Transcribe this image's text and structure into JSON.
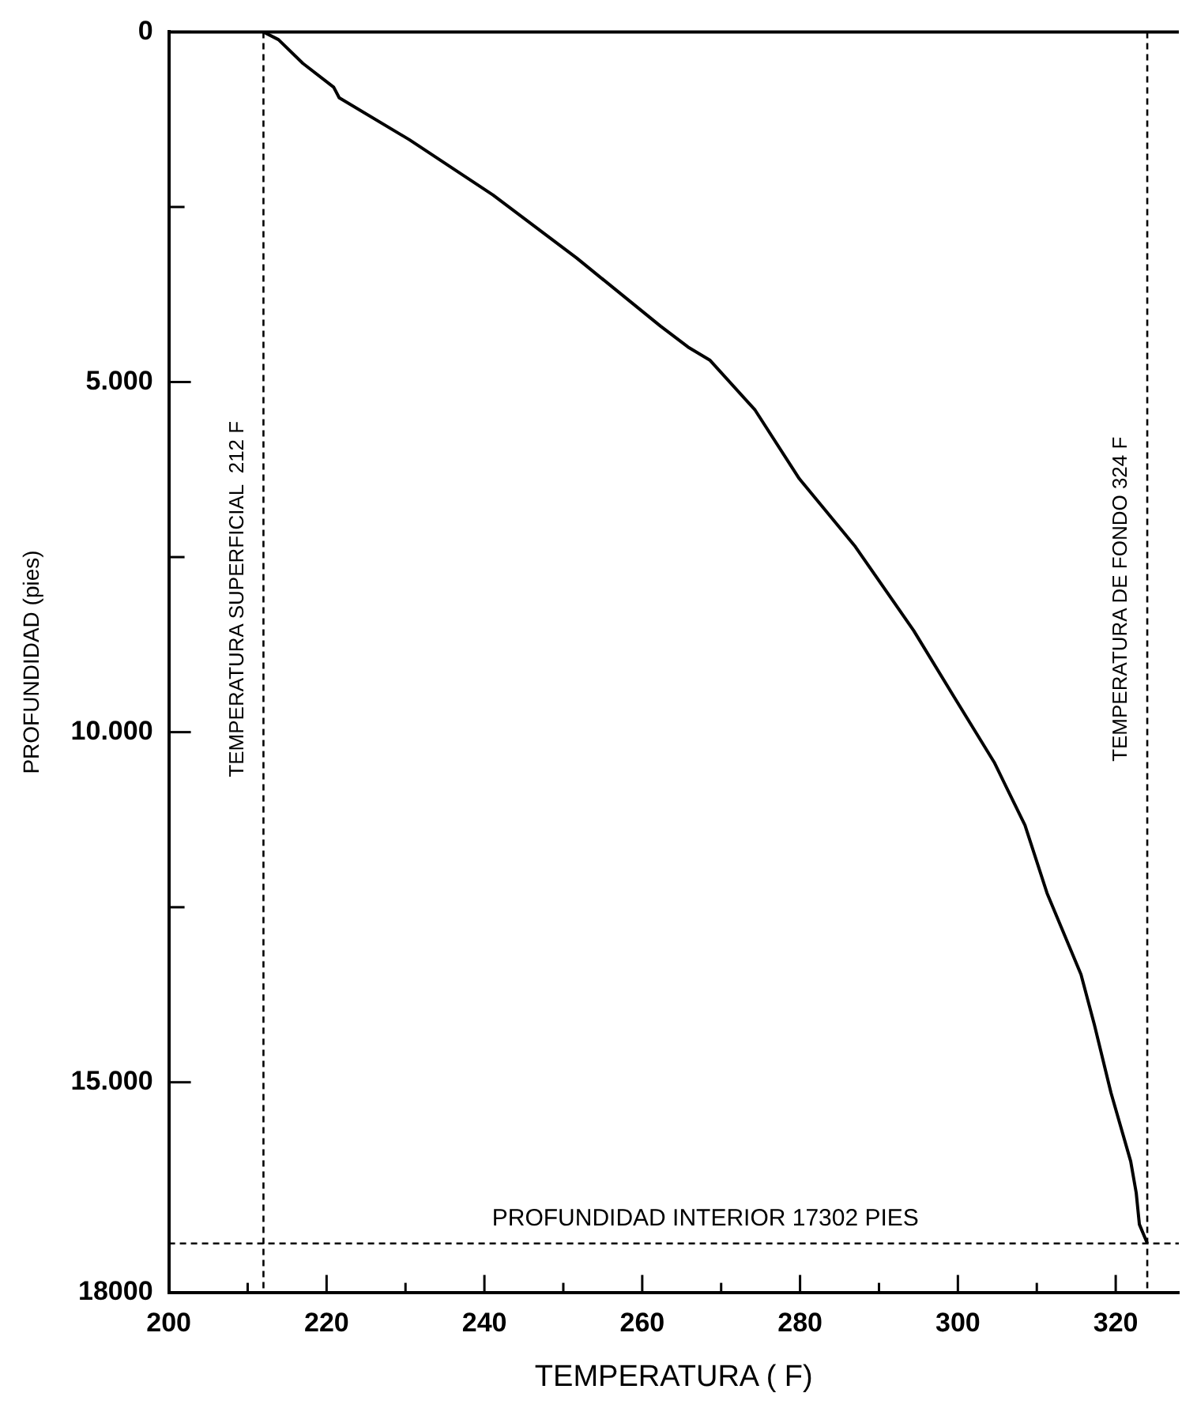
{
  "chart_data": {
    "type": "line",
    "xlabel": "TEMPERATURA ( F)",
    "ylabel": "PROFUNDIDAD (pies)",
    "xlim": [
      200,
      328
    ],
    "ylim": [
      18000,
      0
    ],
    "xticks": [
      200,
      {
        "value": 210,
        "label": null
      },
      220,
      {
        "value": 230,
        "label": null
      },
      240,
      {
        "value": 250,
        "label": null
      },
      260,
      {
        "value": 270,
        "label": null
      },
      280,
      {
        "value": 290,
        "label": null
      },
      300,
      {
        "value": 310,
        "label": null
      },
      320
    ],
    "yticks": [
      0,
      {
        "value": 2500,
        "label": null
      },
      {
        "value": 5000,
        "label": "5.000"
      },
      {
        "value": 7500,
        "label": null
      },
      {
        "value": 10000,
        "label": "10.000"
      },
      {
        "value": 12500,
        "label": null
      },
      {
        "value": 15000,
        "label": "15.000"
      },
      18000
    ],
    "series": [
      {
        "color": "#000000",
        "x": [
          212,
          213.9,
          217,
          220.9,
          221.6,
          230.5,
          241.1,
          251.7,
          262.3,
          265.8,
          268.6,
          274.3,
          279.9,
          287,
          294.4,
          299.7,
          304.6,
          308.5,
          311.3,
          315.6,
          317.3,
          319.4,
          321.9,
          322.6,
          323,
          324
        ],
        "values": [
          0,
          110,
          450,
          790,
          940,
          1540,
          2330,
          3230,
          4200,
          4500,
          4690,
          5400,
          6380,
          7350,
          8550,
          9530,
          10430,
          11330,
          12300,
          13460,
          14180,
          15150,
          16130,
          16580,
          17030,
          17300
        ]
      }
    ],
    "ref_lines": [
      {
        "axis": "x",
        "value": 212,
        "label": "TEMPERATURA SUPERFICIAL  212 F",
        "line_style": "dashed"
      },
      {
        "axis": "x",
        "value": 324,
        "label": "TEMPERATURA DE FONDO 324 F",
        "line_style": "dashed"
      },
      {
        "axis": "y",
        "value": 17302,
        "label": "PROFUNDIDAD INTERIOR 17302 PIES",
        "line_style": "dashed"
      }
    ],
    "grid": false,
    "legend": false,
    "marker": "none",
    "line_style": "solid"
  }
}
